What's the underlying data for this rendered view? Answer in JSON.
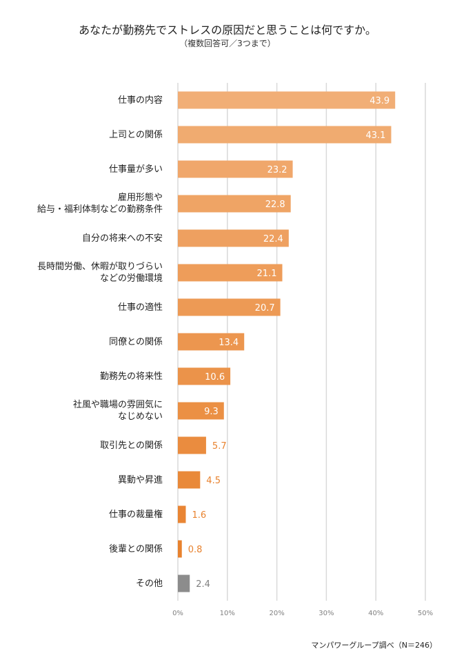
{
  "chart_data": {
    "type": "bar",
    "orientation": "horizontal",
    "title": "あなたが勤務先でストレスの原因だと思うことは何ですか。",
    "subtitle": "（複数回答可／3つまで）",
    "source": "マンパワーグループ調べ（N＝246）",
    "categories": [
      "仕事の内容",
      "上司との関係",
      "仕事量が多い",
      "雇用形態や\n給与・福利体制などの勤務条件",
      "自分の将来への不安",
      "長時間労働、休暇が取りづらい\nなどの労働環境",
      "仕事の適性",
      "同僚との関係",
      "勤務先の将来性",
      "社風や職場の雰囲気に\nなじめない",
      "取引先との関係",
      "異動や昇進",
      "仕事の裁量権",
      "後輩との関係",
      "その他"
    ],
    "values": [
      43.9,
      43.1,
      23.2,
      22.8,
      22.4,
      21.1,
      20.7,
      13.4,
      10.6,
      9.3,
      5.7,
      4.5,
      1.6,
      0.8,
      2.4
    ],
    "value_labels": [
      "43.9",
      "43.1",
      "23.2",
      "22.8",
      "22.4",
      "21.1",
      "20.7",
      "13.4",
      "10.6",
      "9.3",
      "5.7",
      "4.5",
      "1.6",
      "0.8",
      "2.4"
    ],
    "xlim": [
      0,
      50
    ],
    "x_ticks": [
      "0%",
      "10%",
      "20%",
      "30%",
      "40%",
      "50%"
    ],
    "grid": true,
    "legend": "none",
    "colors": {
      "bar_light": "#f1ae76",
      "bar_dark": "#e8822e",
      "other": "#8c8c8c",
      "outside_label": "#e8822e",
      "other_label": "#7f7f7f",
      "grid": "#d9d9d9",
      "tick": "#808080"
    }
  }
}
